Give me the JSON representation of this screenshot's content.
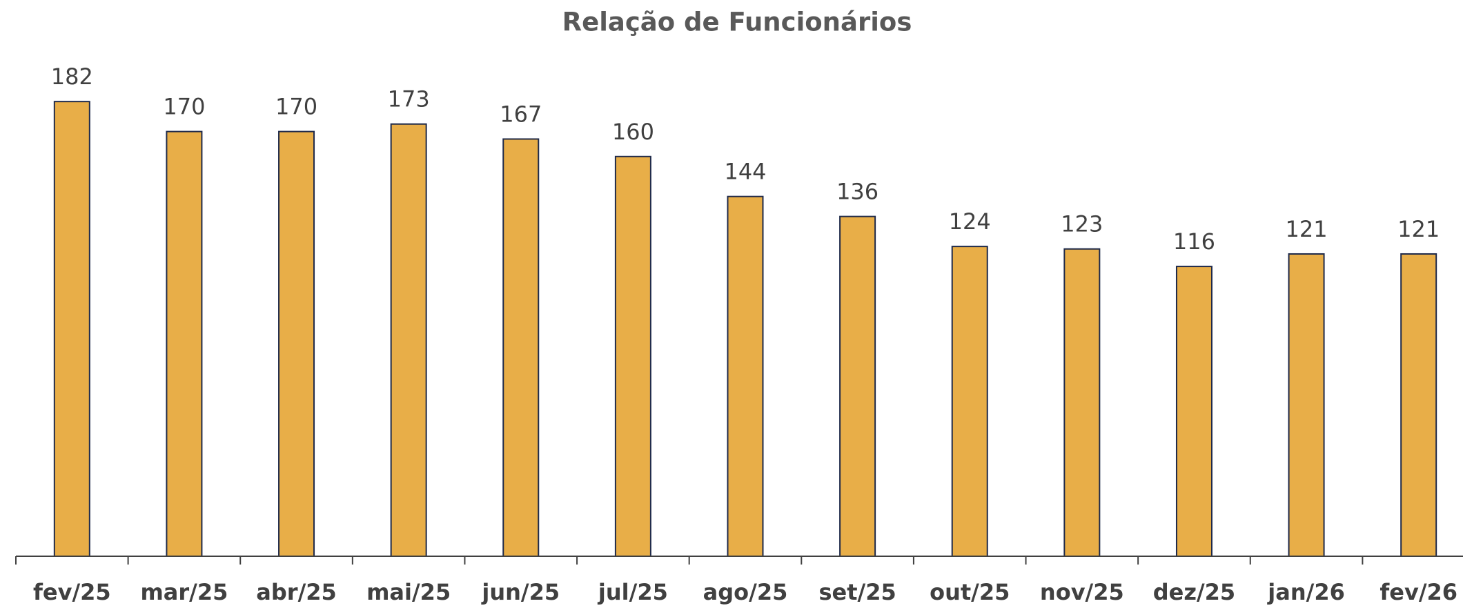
{
  "chart_data": {
    "type": "bar",
    "title": "Relação de Funcionários",
    "categories": [
      "fev/25",
      "mar/25",
      "abr/25",
      "mai/25",
      "jun/25",
      "jul/25",
      "ago/25",
      "set/25",
      "out/25",
      "nov/25",
      "dez/25",
      "jan/26",
      "fev/26"
    ],
    "values": [
      182,
      170,
      170,
      173,
      167,
      160,
      144,
      136,
      124,
      123,
      116,
      121,
      121
    ],
    "color": "#E8AE48",
    "edge_color": "#1F2A4A",
    "ylim": [
      0,
      200
    ]
  }
}
